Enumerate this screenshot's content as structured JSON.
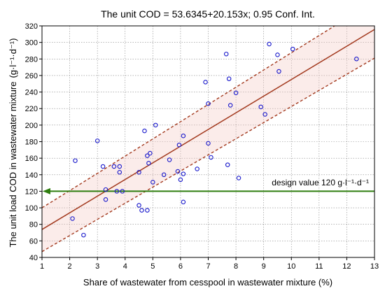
{
  "chart_data": {
    "type": "scatter",
    "title": "The unit COD = 53.6345+20.153x; 0.95 Conf. Int.",
    "xlabel": "Share of wastewater from cesspool in wastewater mixture (%)",
    "ylabel": "The unit load COD in wastewater mixture",
    "ylabel_unit": "(g·l⁻¹·d⁻¹)",
    "xlim": [
      1,
      13
    ],
    "ylim": [
      40,
      320
    ],
    "x_ticks": [
      1,
      2,
      3,
      4,
      5,
      6,
      7,
      8,
      9,
      10,
      11,
      12,
      13
    ],
    "y_ticks": [
      40,
      60,
      80,
      100,
      120,
      140,
      160,
      180,
      200,
      220,
      240,
      260,
      280,
      300,
      320
    ],
    "grid": true,
    "regression": {
      "intercept": 53.6345,
      "slope": 20.153,
      "confidence": 0.95,
      "ci_lower": [
        [
          1,
          47
        ],
        [
          13,
          281
        ]
      ],
      "ci_upper": [
        [
          1,
          100
        ],
        [
          13,
          350
        ]
      ]
    },
    "design_value": {
      "y": 120,
      "label": "design value 120 g·l⁻¹·d⁻¹"
    },
    "colors": {
      "points": "#1a1acc",
      "regression": "#a33a1f",
      "design_line": "#2e7d0f",
      "grid": "#888888"
    },
    "points": [
      [
        2.1,
        87
      ],
      [
        2.2,
        157
      ],
      [
        2.5,
        67
      ],
      [
        3.0,
        181
      ],
      [
        3.2,
        150
      ],
      [
        3.3,
        110
      ],
      [
        3.3,
        122
      ],
      [
        3.6,
        150
      ],
      [
        3.7,
        120
      ],
      [
        3.8,
        143
      ],
      [
        3.8,
        150
      ],
      [
        3.9,
        120
      ],
      [
        4.5,
        103
      ],
      [
        4.5,
        143
      ],
      [
        4.6,
        97
      ],
      [
        4.7,
        193
      ],
      [
        4.8,
        97
      ],
      [
        4.8,
        163
      ],
      [
        4.85,
        154
      ],
      [
        4.9,
        166
      ],
      [
        5.0,
        131
      ],
      [
        5.1,
        200
      ],
      [
        5.4,
        140
      ],
      [
        5.6,
        158
      ],
      [
        5.9,
        144
      ],
      [
        5.95,
        176
      ],
      [
        6.0,
        134
      ],
      [
        6.1,
        187
      ],
      [
        6.1,
        107
      ],
      [
        6.1,
        141
      ],
      [
        6.6,
        147
      ],
      [
        6.9,
        252
      ],
      [
        7.0,
        226
      ],
      [
        7.0,
        178
      ],
      [
        7.1,
        161
      ],
      [
        7.65,
        286
      ],
      [
        7.7,
        152
      ],
      [
        7.75,
        256
      ],
      [
        7.8,
        224
      ],
      [
        8.0,
        239
      ],
      [
        8.1,
        136
      ],
      [
        8.9,
        222
      ],
      [
        9.05,
        213
      ],
      [
        9.2,
        298
      ],
      [
        9.5,
        285
      ],
      [
        9.55,
        265
      ],
      [
        10.05,
        292
      ],
      [
        12.35,
        280
      ]
    ]
  }
}
